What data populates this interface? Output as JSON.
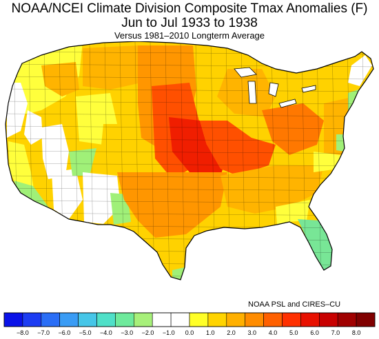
{
  "header": {
    "title_line1": "NOAA/NCEI Climate Division Composite Tmax Anomalies (F)",
    "title_line2": "Jun to Jul 1933 to 1938",
    "subtitle": "Versus 1981–2010 Longterm Average"
  },
  "credit": "NOAA PSL and CIRES–CU",
  "colorbar": {
    "ticks": [
      "−8.0",
      "−7.0",
      "−6.0",
      "−5.0",
      "−4.0",
      "−3.0",
      "−2.0",
      "−1.0",
      "0.0",
      "1.0",
      "2.0",
      "3.0",
      "4.0",
      "5.0",
      "6.0",
      "7.0",
      "8.0"
    ],
    "colors": [
      "#0a12e8",
      "#1c3cf2",
      "#2a6ef6",
      "#3a9cf5",
      "#46c6e8",
      "#4fe0c8",
      "#6eea9c",
      "#a7f07a",
      "#ffffff",
      "#ffffff",
      "#ffff28",
      "#ffd400",
      "#ffb000",
      "#ff8c00",
      "#ff6000",
      "#ff3000",
      "#e81000",
      "#c80000",
      "#a00000",
      "#800000"
    ]
  },
  "map_regions": {
    "white": "#ffffff",
    "yellow": "#ffff3c",
    "gold": "#ffd200",
    "amber": "#ffb400",
    "orange": "#ff9600",
    "darkorange": "#ff7800",
    "red_orange": "#ff5000",
    "red": "#f01e00",
    "lightgreen": "#a0f078",
    "green": "#78e696"
  }
}
